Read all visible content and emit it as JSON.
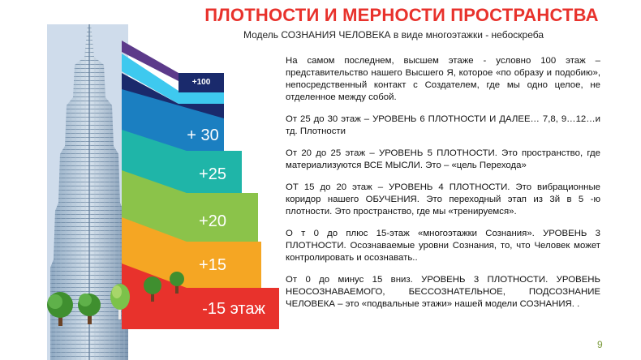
{
  "header": {
    "title": "ПЛОТНОСТИ И МЕРНОСТИ ПРОСТРАНСТВА",
    "subtitle": "Модель СОЗНАНИЯ ЧЕЛОВЕКА  в виде многоэтажки - небоскреба"
  },
  "levels": [
    {
      "label": "+100",
      "color": "#1a2a6c"
    },
    {
      "label": "+ 30",
      "color": "#1b7fc1"
    },
    {
      "label": "+25",
      "color": "#1fb5a8"
    },
    {
      "label": "+20",
      "color": "#8bc34a"
    },
    {
      "label": "+15",
      "color": "#f5a623"
    },
    {
      "label": "-15 этаж",
      "color": "#e8322c"
    }
  ],
  "top_bands": [
    "#5c3a8a",
    "#3ec9ef",
    "#1a2a6c"
  ],
  "paragraphs": [
    "На самом последнем, высшем этаже -   условно 100 этаж – представительство нашего Высшего Я, которое «по образу и подобию», непосредственный контакт с Создателем, где мы одно целое, не отделенное между собой.",
    "От 25 до 30 этаж – УРОВЕНЬ 6 ПЛОТНОСТИ И ДАЛЕЕ… 7,8, 9…12…и тд. Плотности",
    "От 20 до 25 этаж – УРОВЕНЬ 5 ПЛОТНОСТИ. Это пространство, где материализуются ВСЕ МЫСЛИ. Это – «цель Перехода»",
    "ОТ 15 до 20 этаж – УРОВЕНЬ 4 ПЛОТНОСТИ. Это вибрационные коридор   нашего ОБУЧЕНИЯ. Это переходный этап из 3й в 5 -ю плотности. Это пространство, где мы «тренируемся».",
    "О т 0 до плюс 15-этаж «многоэтажки Сознания». УРОВЕНЬ 3 ПЛОТНОСТИ. Осознаваемые уровни Сознания, то, что Человек может контролировать и осознавать..",
    "От 0 до минус 15 вниз. УРОВЕНЬ 3 ПЛОТНОСТИ. УРОВЕНЬ НЕОСОЗНАВАЕМОГО, БЕССОЗНАТЕЛЬНОЕ, ПОДСОЗНАНИЕ ЧЕЛОВЕКА – это «подвальные этажи» нашей модели СОЗНАНИЯ. ."
  ],
  "page_number": "9"
}
